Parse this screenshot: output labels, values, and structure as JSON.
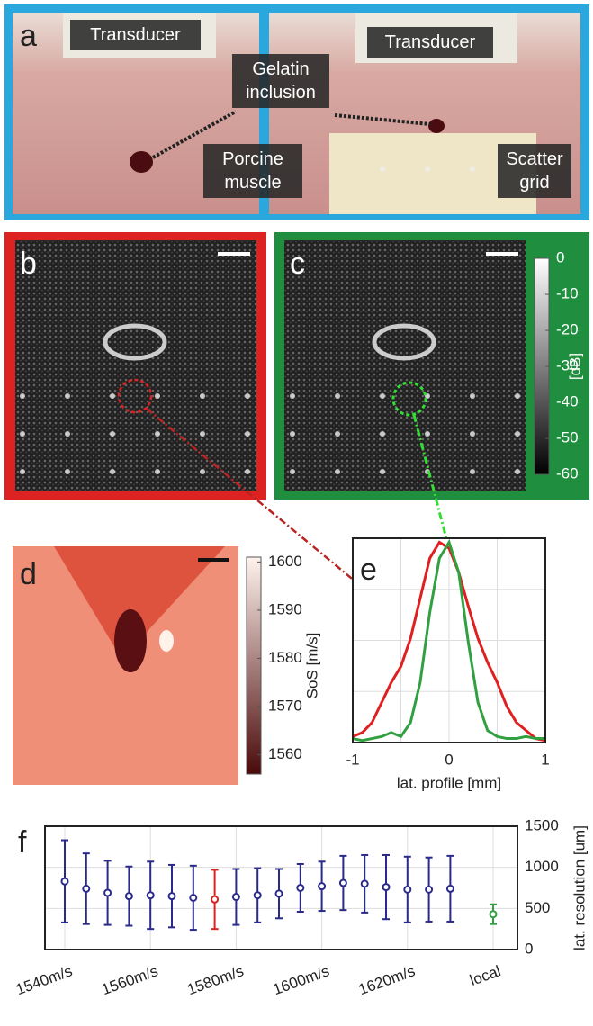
{
  "panel_labels": [
    "a",
    "b",
    "c",
    "d",
    "e",
    "f"
  ],
  "photo_annotations": [
    "Transducer",
    "Transducer",
    "Gelatin inclusion",
    "Porcine muscle",
    "Scatter grid"
  ],
  "chart_data": [
    {
      "type": "colorbar",
      "label": "[dB]",
      "ylim": [
        -60,
        0
      ],
      "yticks": [
        0,
        -10,
        -20,
        -30,
        -40,
        -50,
        -60
      ],
      "colors": [
        "#000000",
        "#ffffff"
      ]
    },
    {
      "type": "colorbar",
      "label": "SoS [m/s]",
      "ylim": [
        1556,
        1601
      ],
      "yticks": [
        1600,
        1590,
        1580,
        1570,
        1560
      ],
      "colors": [
        "#4a0a0a",
        "#fff3ee"
      ]
    },
    {
      "type": "line",
      "xlabel": "lat. profile [mm]",
      "xlim": [
        -1,
        1
      ],
      "xticks": [
        -1,
        0,
        1
      ],
      "ylim": [
        0,
        1.02
      ],
      "grid": true,
      "x": [
        -1,
        -0.9,
        -0.8,
        -0.7,
        -0.6,
        -0.5,
        -0.4,
        -0.3,
        -0.2,
        -0.1,
        0,
        0.1,
        0.2,
        0.3,
        0.4,
        0.5,
        0.6,
        0.7,
        0.8,
        0.9,
        1
      ],
      "series": [
        {
          "color": "#e02020",
          "values": [
            0.03,
            0.05,
            0.1,
            0.2,
            0.3,
            0.38,
            0.52,
            0.72,
            0.92,
            1.0,
            0.97,
            0.85,
            0.68,
            0.52,
            0.4,
            0.3,
            0.18,
            0.1,
            0.06,
            0.02,
            0.01
          ]
        },
        {
          "color": "#30a040",
          "values": [
            0.02,
            0.01,
            0.02,
            0.03,
            0.05,
            0.03,
            0.1,
            0.3,
            0.65,
            0.92,
            1.0,
            0.85,
            0.5,
            0.2,
            0.06,
            0.03,
            0.02,
            0.02,
            0.03,
            0.02,
            0.02
          ]
        }
      ]
    },
    {
      "type": "errorbar",
      "ylabel": "lat. resolution [um]",
      "ylim": [
        0,
        1500
      ],
      "yticks": [
        0,
        500,
        1000,
        1500
      ],
      "grid": true,
      "categories": [
        "1540m/s",
        null,
        null,
        null,
        "1560m/s",
        null,
        null,
        null,
        "1580m/s",
        null,
        null,
        null,
        "1600m/s",
        null,
        null,
        null,
        "1620m/s",
        null,
        null,
        null,
        "local"
      ],
      "values": [
        830,
        740,
        690,
        650,
        660,
        650,
        630,
        610,
        640,
        660,
        680,
        750,
        770,
        810,
        800,
        760,
        730,
        730,
        740,
        null,
        430
      ],
      "errors": [
        500,
        430,
        390,
        360,
        410,
        380,
        390,
        360,
        340,
        330,
        300,
        290,
        300,
        330,
        350,
        390,
        400,
        390,
        400,
        null,
        120
      ],
      "colors": [
        "#2a2a8a",
        "#2a2a8a",
        "#2a2a8a",
        "#2a2a8a",
        "#2a2a8a",
        "#2a2a8a",
        "#2a2a8a",
        "#dd2222",
        "#2a2a8a",
        "#2a2a8a",
        "#2a2a8a",
        "#2a2a8a",
        "#2a2a8a",
        "#2a2a8a",
        "#2a2a8a",
        "#2a2a8a",
        "#2a2a8a",
        "#2a2a8a",
        "#2a2a8a",
        null,
        "#30a040"
      ]
    }
  ]
}
